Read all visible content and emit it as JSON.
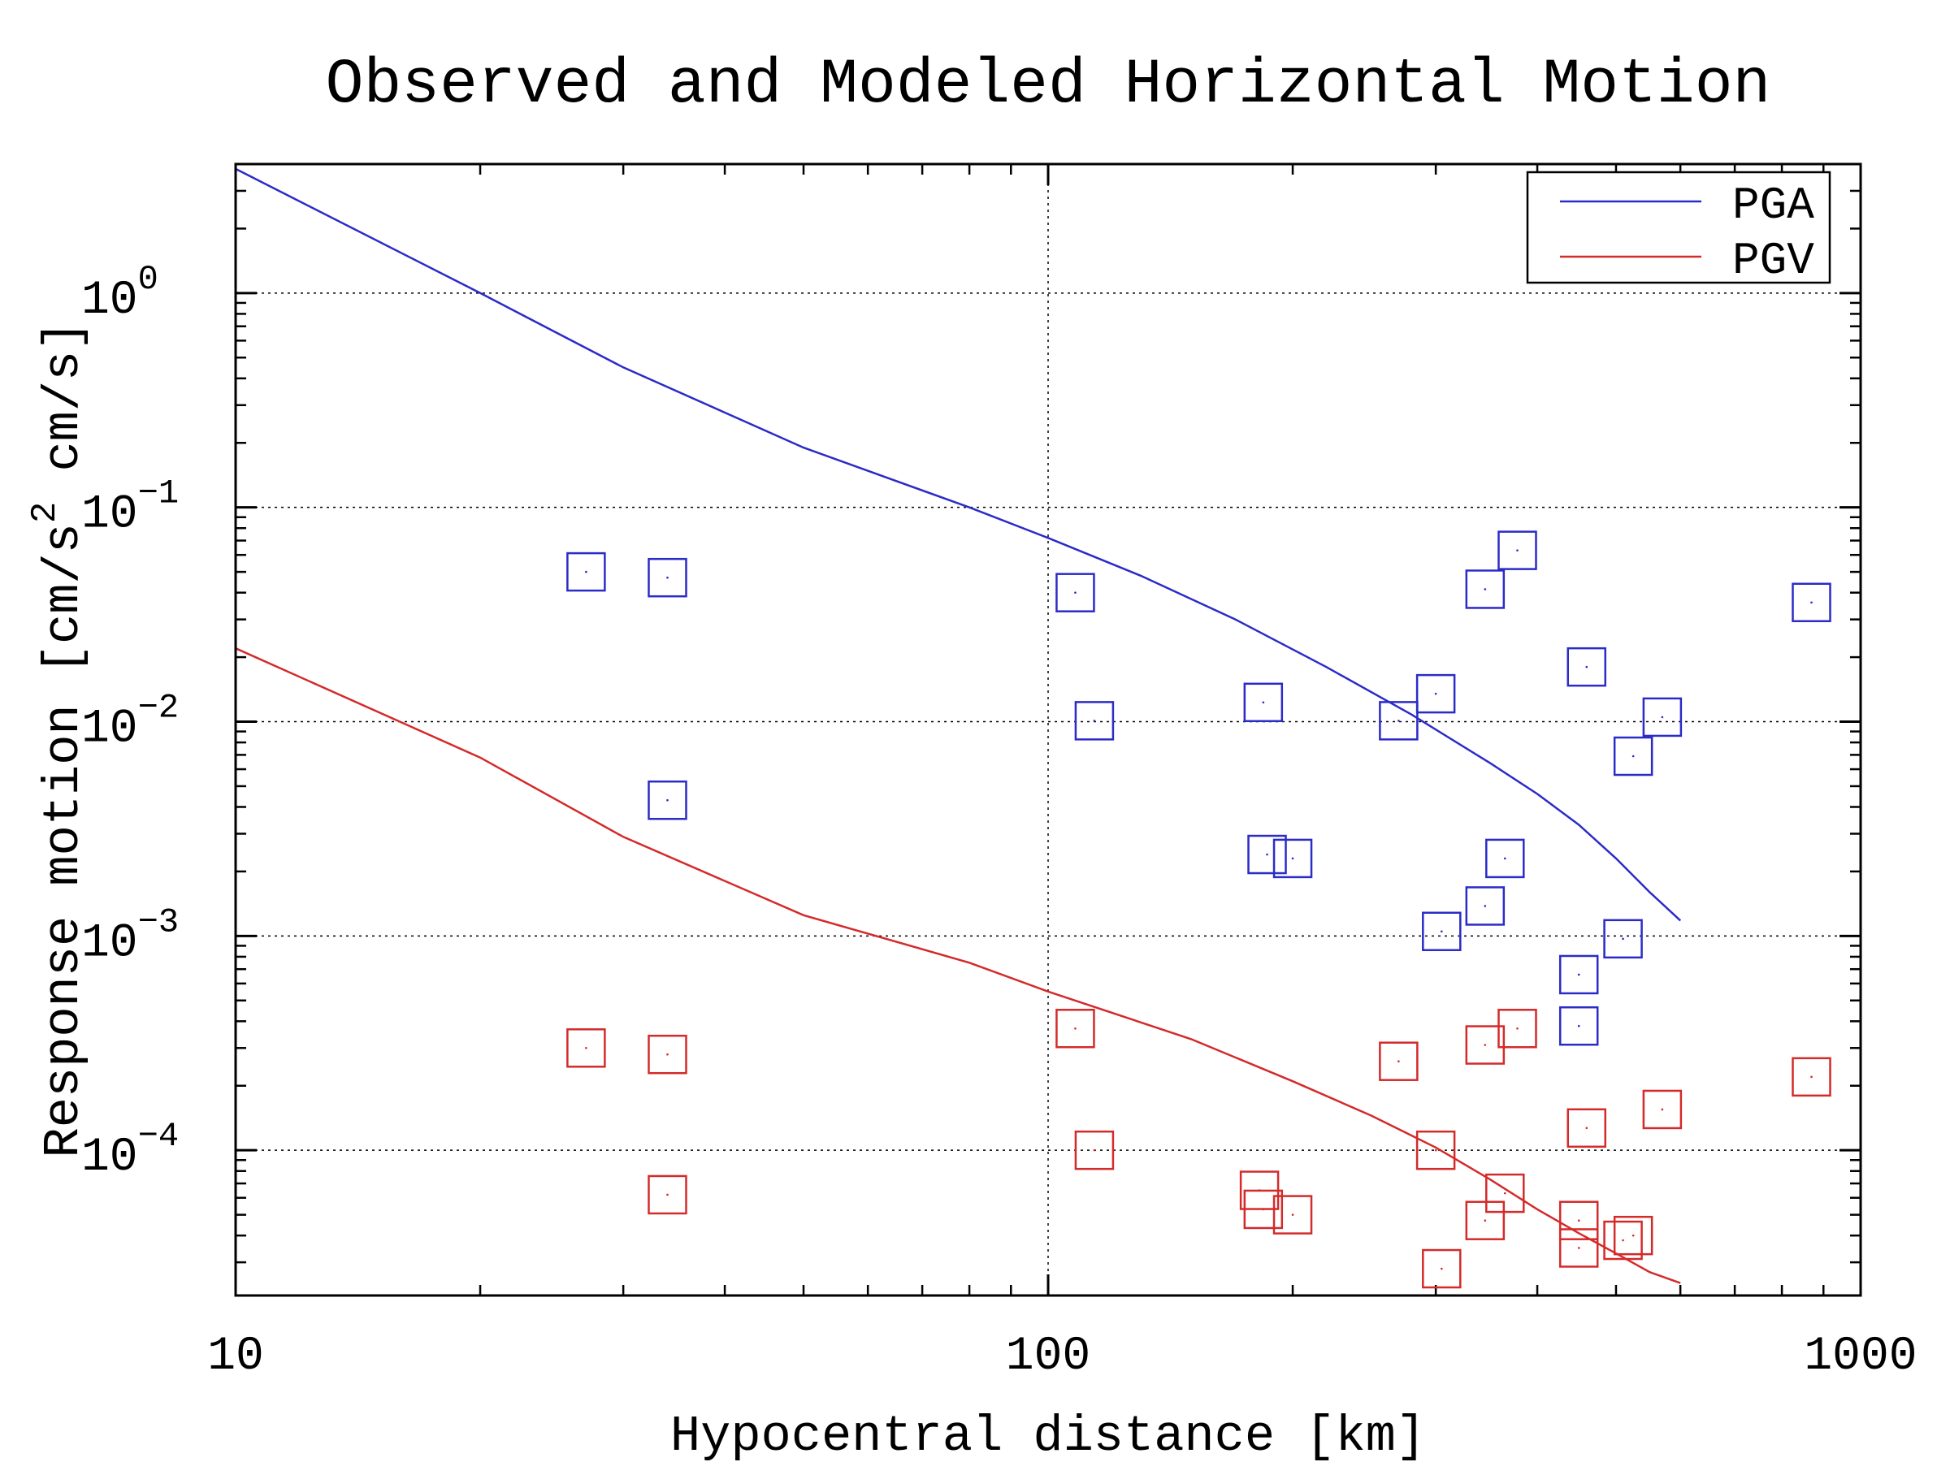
{
  "chart_data": {
    "type": "scatter",
    "title": "Observed and Modeled Horizontal Motion",
    "xlabel": "Hypocentral distance [km]",
    "ylabel": {
      "part1": "Response motion  [cm/s",
      "sup": "2",
      "part2": "  cm/s]"
    },
    "x_scale": "log",
    "y_scale": "log",
    "xlim": [
      10,
      1000
    ],
    "ylim": [
      2.1e-05,
      4.0
    ],
    "x_ticks": [
      {
        "value": 10,
        "label": "10"
      },
      {
        "value": 100,
        "label": "100"
      },
      {
        "value": 1000,
        "label": "1000"
      }
    ],
    "y_ticks": [
      {
        "value": 1,
        "base": "10",
        "exp": "0"
      },
      {
        "value": 0.1,
        "base": "10",
        "exp": "−1"
      },
      {
        "value": 0.01,
        "base": "10",
        "exp": "−2"
      },
      {
        "value": 0.001,
        "base": "10",
        "exp": "−3"
      },
      {
        "value": 0.0001,
        "base": "10",
        "exp": "−4"
      }
    ],
    "grid": true,
    "legend_position": "top-right",
    "series": [
      {
        "name": "PGA",
        "color": "#2b2bc8",
        "model_line": [
          [
            10,
            3.8
          ],
          [
            20,
            1.0
          ],
          [
            30,
            0.45
          ],
          [
            50,
            0.19
          ],
          [
            80,
            0.1
          ],
          [
            100,
            0.072
          ],
          [
            130,
            0.048
          ],
          [
            170,
            0.03
          ],
          [
            220,
            0.018
          ],
          [
            280,
            0.0108
          ],
          [
            350,
            0.0064
          ],
          [
            400,
            0.0046
          ],
          [
            450,
            0.0033
          ],
          [
            500,
            0.0023
          ],
          [
            550,
            0.0016
          ],
          [
            600,
            0.00118
          ]
        ],
        "observed": [
          [
            27,
            0.05
          ],
          [
            34,
            0.047
          ],
          [
            34,
            0.0043
          ],
          [
            108,
            0.04
          ],
          [
            114,
            0.0101
          ],
          [
            184,
            0.0123
          ],
          [
            186,
            0.0024
          ],
          [
            200,
            0.0023
          ],
          [
            270,
            0.0101
          ],
          [
            300,
            0.0135
          ],
          [
            305,
            0.00105
          ],
          [
            345,
            0.0415
          ],
          [
            345,
            0.00138
          ],
          [
            365,
            0.0023
          ],
          [
            378,
            0.063
          ],
          [
            450,
            0.00066
          ],
          [
            450,
            0.00038
          ],
          [
            460,
            0.018
          ],
          [
            510,
            0.00097
          ],
          [
            525,
            0.0069
          ],
          [
            570,
            0.0105
          ],
          [
            870,
            0.036
          ]
        ]
      },
      {
        "name": "PGV",
        "color": "#d42a2a",
        "model_line": [
          [
            10,
            0.022
          ],
          [
            20,
            0.0068
          ],
          [
            30,
            0.0029
          ],
          [
            50,
            0.00125
          ],
          [
            80,
            0.00075
          ],
          [
            100,
            0.00055
          ],
          [
            150,
            0.00033
          ],
          [
            200,
            0.00021
          ],
          [
            250,
            0.000145
          ],
          [
            300,
            0.000103
          ],
          [
            350,
            7.3e-05
          ],
          [
            400,
            5.3e-05
          ],
          [
            450,
            4.1e-05
          ],
          [
            500,
            3.3e-05
          ],
          [
            550,
            2.7e-05
          ],
          [
            600,
            2.4e-05
          ]
        ],
        "observed": [
          [
            27,
            0.0003
          ],
          [
            34,
            0.00028
          ],
          [
            34,
            6.2e-05
          ],
          [
            108,
            0.00037
          ],
          [
            114,
            0.0001
          ],
          [
            182,
            6.5e-05
          ],
          [
            184,
            5.3e-05
          ],
          [
            200,
            5e-05
          ],
          [
            270,
            0.00026
          ],
          [
            300,
            0.0001
          ],
          [
            305,
            2.8e-05
          ],
          [
            345,
            0.00031
          ],
          [
            345,
            4.7e-05
          ],
          [
            365,
            6.3e-05
          ],
          [
            378,
            0.00037
          ],
          [
            450,
            4.7e-05
          ],
          [
            450,
            3.5e-05
          ],
          [
            460,
            0.000127
          ],
          [
            510,
            3.8e-05
          ],
          [
            525,
            4e-05
          ],
          [
            570,
            0.000155
          ],
          [
            870,
            0.00022
          ]
        ]
      }
    ]
  }
}
